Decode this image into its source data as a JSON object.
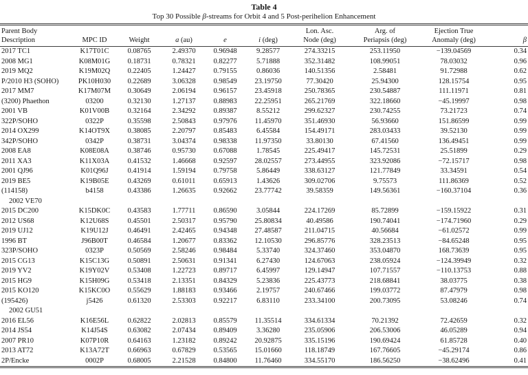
{
  "table": {
    "label": "Table 4",
    "subtitle_pre": "Top 30 Possible ",
    "subtitle_beta": "β",
    "subtitle_post": "-streams for Orbit 4 and 5 Post-perihelion Enhancement",
    "rule_color": "#3d3d3d",
    "columns": [
      {
        "key": "desc",
        "line1": "Parent Body",
        "line2_it": "",
        "line2_rest": "Description"
      },
      {
        "key": "mpc",
        "line1": "",
        "line2_it": "",
        "line2_rest": "MPC ID"
      },
      {
        "key": "weight",
        "line1": "",
        "line2_it": "",
        "line2_rest": "Weight"
      },
      {
        "key": "a",
        "line1": "",
        "line2_it": "a",
        "line2_rest": " (au)"
      },
      {
        "key": "e",
        "line1": "",
        "line2_it": "e",
        "line2_rest": ""
      },
      {
        "key": "i",
        "line1": "",
        "line2_it": "i",
        "line2_rest": " (deg)"
      },
      {
        "key": "node",
        "line1": "Lon. Asc.",
        "line2_it": "",
        "line2_rest": "Node (deg)"
      },
      {
        "key": "arg",
        "line1": "Arg. of",
        "line2_it": "",
        "line2_rest": "Periapsis (deg)"
      },
      {
        "key": "anomaly",
        "line1": "Ejection True",
        "line2_it": "",
        "line2_rest": "Anomaly (deg)"
      },
      {
        "key": "beta",
        "line1": "",
        "line2_it": "β",
        "line2_rest": ""
      }
    ],
    "rows": [
      {
        "desc": "2017 TC1",
        "mpc": "K17T01C",
        "weight": "0.08765",
        "a": "2.49370",
        "e": "0.96948",
        "i": "9.28577",
        "node": "274.33215",
        "arg": "253.11950",
        "anomaly": "−139.04569",
        "beta": "0.34"
      },
      {
        "desc": "2008 MG1",
        "mpc": "K08M01G",
        "weight": "0.18731",
        "a": "0.78321",
        "e": "0.82277",
        "i": "5.71888",
        "node": "352.31482",
        "arg": "108.99051",
        "anomaly": "78.03032",
        "beta": "0.96"
      },
      {
        "desc": "2019 MQ2",
        "mpc": "K19M02Q",
        "weight": "0.22405",
        "a": "1.24427",
        "e": "0.79155",
        "i": "0.86036",
        "node": "140.51356",
        "arg": "2.58481",
        "anomaly": "91.72988",
        "beta": "0.62"
      },
      {
        "desc": "P/2010 H3 (SOHO)",
        "mpc": "PK10H030",
        "weight": "0.22689",
        "a": "3.06328",
        "e": "0.98549",
        "i": "23.19750",
        "node": "77.30420",
        "arg": "25.94300",
        "anomaly": "128.15754",
        "beta": "0.95"
      },
      {
        "desc": "2017 MM7",
        "mpc": "K17M07M",
        "weight": "0.30649",
        "a": "2.06194",
        "e": "0.96157",
        "i": "23.45918",
        "node": "250.78365",
        "arg": "230.54887",
        "anomaly": "111.11971",
        "beta": "0.81"
      },
      {
        "desc": "(3200) Phaethon",
        "mpc": "03200",
        "weight": "0.32130",
        "a": "1.27137",
        "e": "0.88983",
        "i": "22.25951",
        "node": "265.21769",
        "arg": "322.18660",
        "anomaly": "−45.19997",
        "beta": "0.98"
      },
      {
        "desc": "2001 VB",
        "mpc": "K01V00B",
        "weight": "0.32164",
        "a": "2.34292",
        "e": "0.89387",
        "i": "8.55212",
        "node": "299.62327",
        "arg": "230.74255",
        "anomaly": "73.21723",
        "beta": "0.74"
      },
      {
        "desc": "322P/SOHO",
        "mpc": "0322P",
        "weight": "0.35598",
        "a": "2.50843",
        "e": "0.97976",
        "i": "11.45970",
        "node": "351.46930",
        "arg": "56.93660",
        "anomaly": "151.86599",
        "beta": "0.99"
      },
      {
        "desc": "2014 OX299",
        "mpc": "K14OT9X",
        "weight": "0.38085",
        "a": "2.20797",
        "e": "0.85483",
        "i": "6.45584",
        "node": "154.49171",
        "arg": "283.03433",
        "anomaly": "39.52130",
        "beta": "0.99"
      },
      {
        "desc": "342P/SOHO",
        "mpc": "0342P",
        "weight": "0.38731",
        "a": "3.04374",
        "e": "0.98338",
        "i": "11.97350",
        "node": "33.80130",
        "arg": "67.41560",
        "anomaly": "136.49451",
        "beta": "0.99"
      },
      {
        "desc": "2008 EA8",
        "mpc": "K08E08A",
        "weight": "0.38746",
        "a": "0.95730",
        "e": "0.67088",
        "i": "1.78545",
        "node": "225.49417",
        "arg": "145.72531",
        "anomaly": "25.51899",
        "beta": "0.29"
      },
      {
        "desc": "2011 XA3",
        "mpc": "K11X03A",
        "weight": "0.41532",
        "a": "1.46668",
        "e": "0.92597",
        "i": "28.02557",
        "node": "273.44955",
        "arg": "323.92086",
        "anomaly": "−72.15717",
        "beta": "0.98"
      },
      {
        "desc": "2001 QJ96",
        "mpc": "K01Q96J",
        "weight": "0.41914",
        "a": "1.59194",
        "e": "0.79758",
        "i": "5.86449",
        "node": "338.63127",
        "arg": "121.77849",
        "anomaly": "33.34591",
        "beta": "0.54"
      },
      {
        "desc": "2019 BE5",
        "mpc": "K19B05E",
        "weight": "0.43269",
        "a": "0.61011",
        "e": "0.65913",
        "i": "1.43626",
        "node": "309.02706",
        "arg": "9.75573",
        "anomaly": "111.86369",
        "beta": "0.52"
      },
      {
        "desc": "(114158)",
        "desc2": "2002 VE70",
        "mpc": "b4158",
        "weight": "0.43386",
        "a": "1.26635",
        "e": "0.92662",
        "i": "23.77742",
        "node": "39.58359",
        "arg": "149.56361",
        "anomaly": "−160.37104",
        "beta": "0.36"
      },
      {
        "desc": "2015 DC200",
        "mpc": "K15DK0C",
        "weight": "0.43583",
        "a": "1.77711",
        "e": "0.86590",
        "i": "3.05844",
        "node": "224.17269",
        "arg": "85.72899",
        "anomaly": "−159.15922",
        "beta": "0.31"
      },
      {
        "desc": "2012 US68",
        "mpc": "K12U68S",
        "weight": "0.45501",
        "a": "2.50317",
        "e": "0.95790",
        "i": "25.80834",
        "node": "40.49586",
        "arg": "190.74041",
        "anomaly": "−174.71960",
        "beta": "0.29"
      },
      {
        "desc": "2019 UJ12",
        "mpc": "K19U12J",
        "weight": "0.46491",
        "a": "2.42465",
        "e": "0.94348",
        "i": "27.48587",
        "node": "211.04715",
        "arg": "40.56684",
        "anomaly": "−61.02572",
        "beta": "0.99"
      },
      {
        "desc": "1996 BT",
        "mpc": "J96B00T",
        "weight": "0.46584",
        "a": "1.20677",
        "e": "0.83362",
        "i": "12.10530",
        "node": "296.85776",
        "arg": "328.23513",
        "anomaly": "−84.65248",
        "beta": "0.95"
      },
      {
        "desc": "323P/SOHO",
        "mpc": "0323P",
        "weight": "0.50569",
        "a": "2.58246",
        "e": "0.98484",
        "i": "5.33740",
        "node": "324.37460",
        "arg": "353.04870",
        "anomaly": "168.73639",
        "beta": "0.95"
      },
      {
        "desc": "2015 CG13",
        "mpc": "K15C13G",
        "weight": "0.50891",
        "a": "2.50631",
        "e": "0.91341",
        "i": "6.27430",
        "node": "124.67063",
        "arg": "238.05924",
        "anomaly": "−124.39949",
        "beta": "0.32"
      },
      {
        "desc": "2019 YV2",
        "mpc": "K19Y02V",
        "weight": "0.53408",
        "a": "1.22723",
        "e": "0.89717",
        "i": "6.45997",
        "node": "129.14947",
        "arg": "107.71557",
        "anomaly": "−110.13753",
        "beta": "0.88"
      },
      {
        "desc": "2015 HG9",
        "mpc": "K15H09G",
        "weight": "0.53418",
        "a": "2.13351",
        "e": "0.84329",
        "i": "5.23836",
        "node": "225.43773",
        "arg": "218.68841",
        "anomaly": "38.03775",
        "beta": "0.38"
      },
      {
        "desc": "2015 KO120",
        "mpc": "K15KC0O",
        "weight": "0.55629",
        "a": "1.88183",
        "e": "0.93466",
        "i": "2.19757",
        "node": "240.67466",
        "arg": "199.03772",
        "anomaly": "87.47979",
        "beta": "0.98"
      },
      {
        "desc": "(195426)",
        "desc2": "2002 GU51",
        "mpc": "j5426",
        "weight": "0.61320",
        "a": "2.53303",
        "e": "0.92217",
        "i": "6.83110",
        "node": "233.34100",
        "arg": "200.73095",
        "anomaly": "53.08246",
        "beta": "0.74"
      },
      {
        "desc": "2016 EL56",
        "mpc": "K16E56L",
        "weight": "0.62822",
        "a": "2.02813",
        "e": "0.85579",
        "i": "11.35514",
        "node": "334.61334",
        "arg": "70.21392",
        "anomaly": "72.42659",
        "beta": "0.32"
      },
      {
        "desc": "2014 JS54",
        "mpc": "K14J54S",
        "weight": "0.63082",
        "a": "2.07434",
        "e": "0.89409",
        "i": "3.36280",
        "node": "235.05906",
        "arg": "206.53006",
        "anomaly": "46.05289",
        "beta": "0.94"
      },
      {
        "desc": "2007 PR10",
        "mpc": "K07P10R",
        "weight": "0.64163",
        "a": "1.23182",
        "e": "0.89242",
        "i": "20.92875",
        "node": "335.15196",
        "arg": "190.69424",
        "anomaly": "61.85728",
        "beta": "0.40"
      },
      {
        "desc": "2013 AT72",
        "mpc": "K13A72T",
        "weight": "0.66963",
        "a": "0.67829",
        "e": "0.53565",
        "i": "15.01660",
        "node": "118.18749",
        "arg": "167.76605",
        "anomaly": "−45.29174",
        "beta": "0.86"
      },
      {
        "desc": "2P/Encke",
        "mpc": "0002P",
        "weight": "0.68005",
        "a": "2.21528",
        "e": "0.84800",
        "i": "11.76460",
        "node": "334.55170",
        "arg": "186.56250",
        "anomaly": "−38.62496",
        "beta": "0.41"
      }
    ]
  }
}
